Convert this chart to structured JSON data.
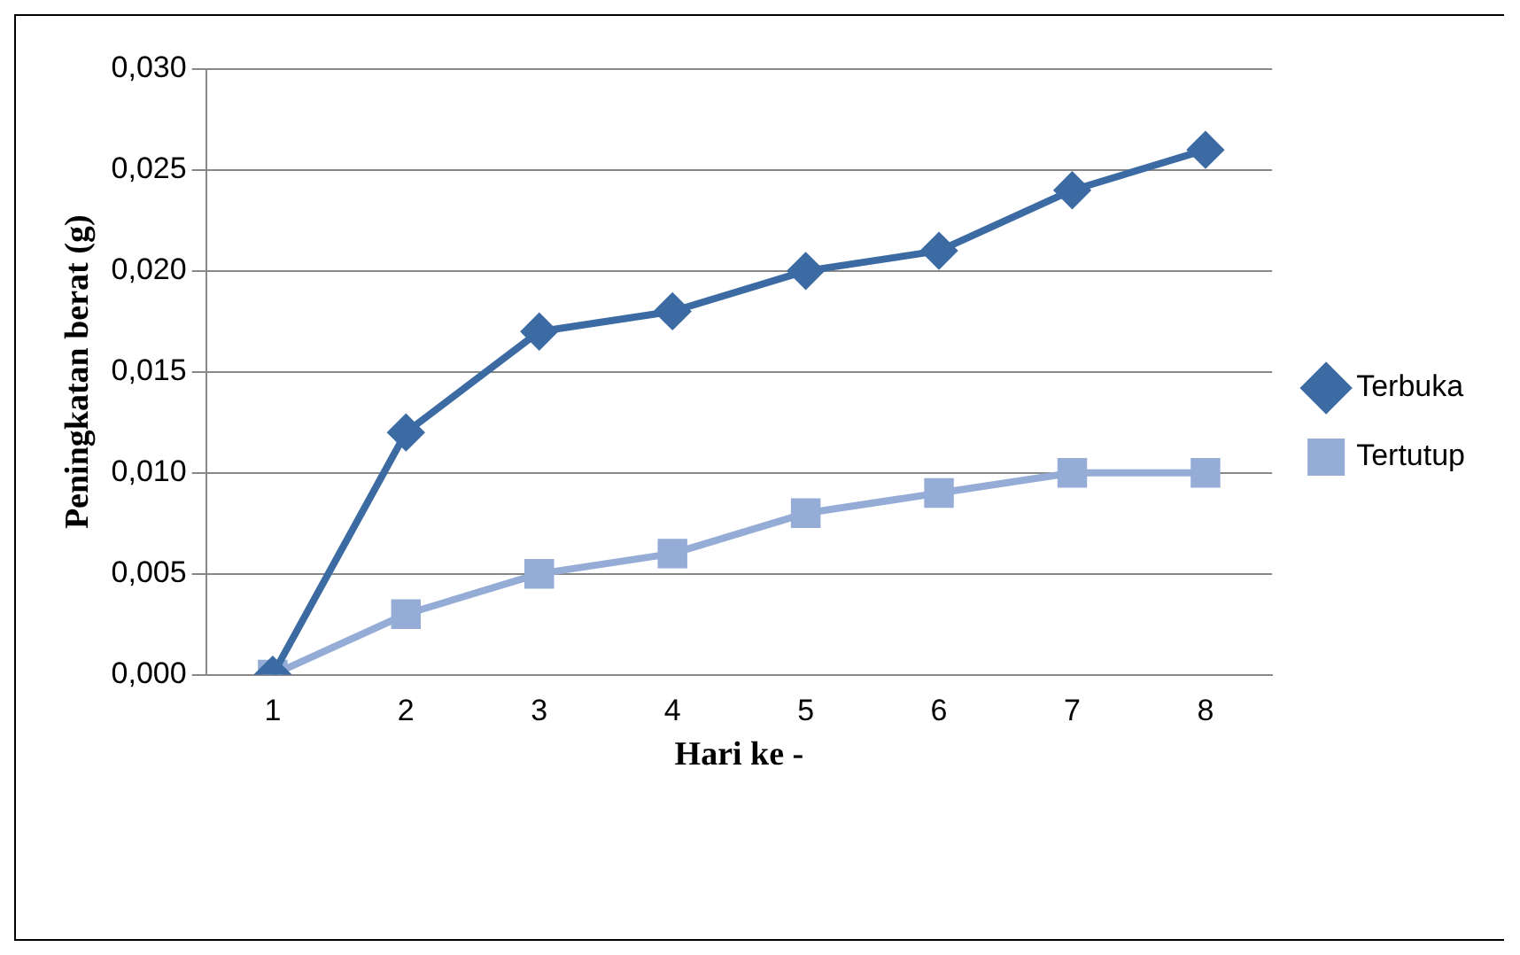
{
  "chart_data": {
    "type": "line",
    "xlabel": "Hari ke -",
    "ylabel": "Peningkatan berat (g)",
    "categories": [
      "1",
      "2",
      "3",
      "4",
      "5",
      "6",
      "7",
      "8"
    ],
    "series": [
      {
        "name": "Terbuka",
        "color": "#3c6ba4",
        "marker": "diamond",
        "values": [
          0,
          0.012,
          0.017,
          0.018,
          0.02,
          0.021,
          0.024,
          0.026
        ]
      },
      {
        "name": "Tertutup",
        "color": "#94acd6",
        "marker": "square",
        "values": [
          0,
          0.003,
          0.005,
          0.006,
          0.008,
          0.009,
          0.01,
          0.01
        ]
      }
    ],
    "ylim": [
      0,
      0.03
    ],
    "yticks": [
      {
        "value": 0,
        "label": "0,000"
      },
      {
        "value": 0.005,
        "label": "0,005"
      },
      {
        "value": 0.01,
        "label": "0,010"
      },
      {
        "value": 0.015,
        "label": "0,015"
      },
      {
        "value": 0.02,
        "label": "0,020"
      },
      {
        "value": 0.025,
        "label": "0,025"
      },
      {
        "value": 0.03,
        "label": "0,030"
      }
    ],
    "grid": "y",
    "legend": "right",
    "line_style": "solid"
  }
}
